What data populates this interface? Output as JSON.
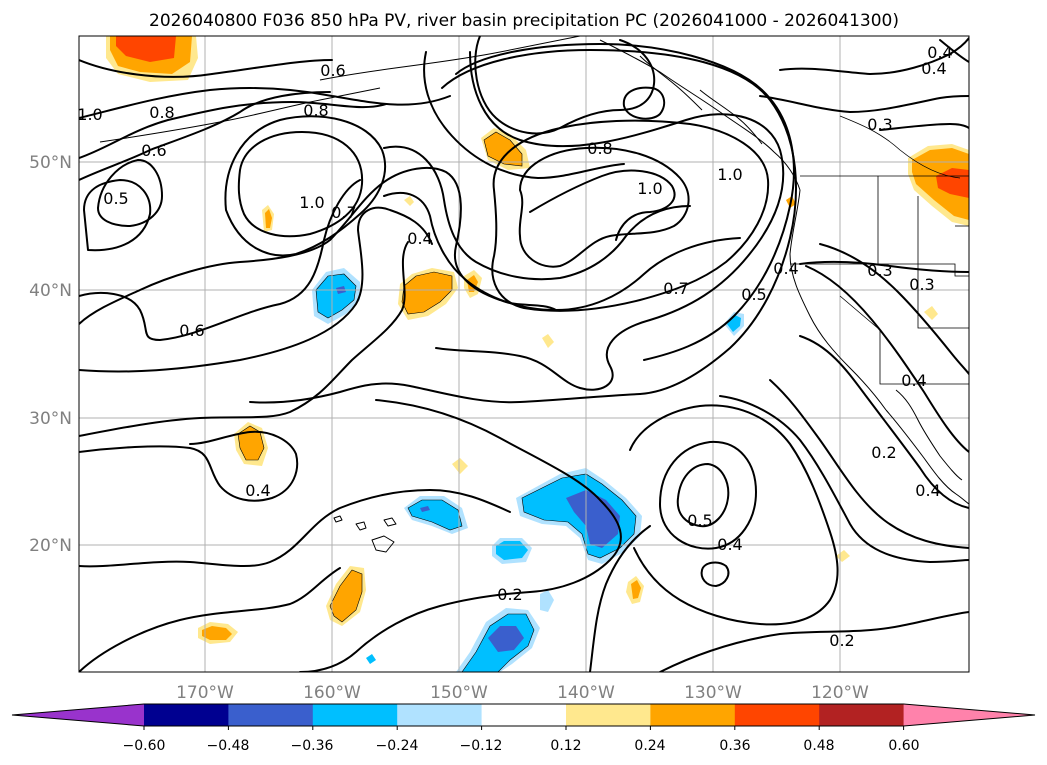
{
  "title": "2026040800 F036 850 hPa PV, river basin precipitation PC (2026041000 - 2026041300)",
  "map": {
    "lon_labels": [
      "170°W",
      "160°W",
      "150°W",
      "140°W",
      "130°W",
      "120°W"
    ],
    "lat_labels": [
      "50°N",
      "40°N",
      "30°N",
      "20°N"
    ],
    "contour_labels": [
      "0.6",
      "0.4",
      "0.3",
      "0.8",
      "0.6",
      "1.0",
      "0.5",
      "0.8",
      "1.0",
      "0.7",
      "0.4",
      "0.8",
      "1.0",
      "1.0",
      "0.3",
      "0.4",
      "0.3",
      "0.5",
      "0.7",
      "0.6",
      "0.4",
      "0.2",
      "0.5",
      "0.4",
      "0.4",
      "0.2",
      "0.2",
      "0.4",
      "0.4"
    ]
  },
  "colorbar": {
    "ticks": [
      "−0.60",
      "−0.48",
      "−0.36",
      "−0.24",
      "−0.12",
      "0.12",
      "0.24",
      "0.36",
      "0.48",
      "0.60"
    ],
    "colors": {
      "under": "#9933cc",
      "bins": [
        "#000090",
        "#3a5fcd",
        "#00bfff",
        "#b0e2ff",
        "#ffffff",
        "#ffe88e",
        "#ffa500",
        "#ff4500",
        "#b22222"
      ],
      "over": "#ff82ab"
    }
  }
}
